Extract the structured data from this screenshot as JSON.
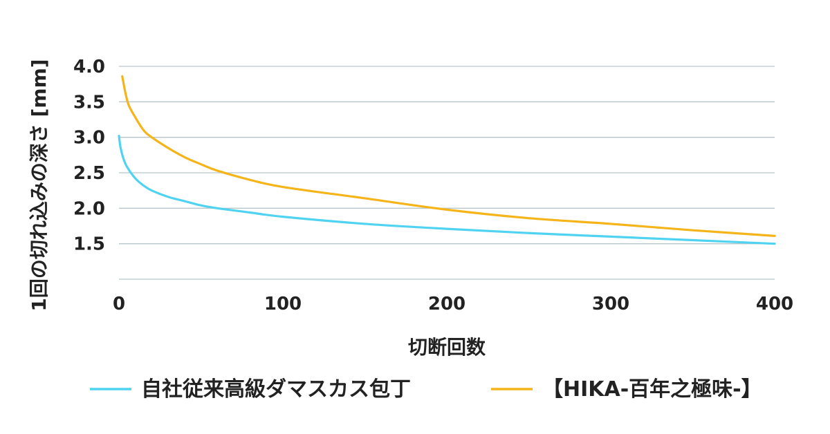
{
  "chart_data": {
    "type": "line",
    "xlabel": "切断回数",
    "ylabel": "1回の切れ込みの深さ [mm]",
    "xlim": [
      0,
      400
    ],
    "ylim": [
      1.0,
      4.0
    ],
    "xticks": [
      0,
      100,
      200,
      300,
      400
    ],
    "xtick_labels": [
      "0",
      "100",
      "200",
      "300",
      "400"
    ],
    "yticks": [
      1.5,
      2.0,
      2.5,
      3.0,
      3.5,
      4.0
    ],
    "ytick_labels": [
      "1.5",
      "2.0",
      "2.5",
      "3.0",
      "3.5",
      "4.0"
    ],
    "grid": true,
    "legend_position": "bottom",
    "series": [
      {
        "name": "自社従来高級ダマスカス包丁",
        "color": "#4fd3f0",
        "x": [
          0,
          1,
          3,
          5,
          10,
          15,
          20,
          30,
          40,
          50,
          60,
          80,
          100,
          150,
          200,
          250,
          300,
          350,
          400
        ],
        "y": [
          3.02,
          2.85,
          2.68,
          2.58,
          2.42,
          2.32,
          2.25,
          2.16,
          2.1,
          2.04,
          2.0,
          1.94,
          1.88,
          1.78,
          1.71,
          1.65,
          1.6,
          1.55,
          1.5
        ]
      },
      {
        "name": "【HIKA-百年之極味-】",
        "color": "#f4b41a",
        "x": [
          2,
          4,
          6,
          10,
          15,
          20,
          30,
          40,
          50,
          60,
          80,
          100,
          150,
          200,
          250,
          300,
          350,
          400
        ],
        "y": [
          3.86,
          3.62,
          3.45,
          3.28,
          3.1,
          3.0,
          2.85,
          2.72,
          2.62,
          2.53,
          2.4,
          2.3,
          2.14,
          1.98,
          1.86,
          1.78,
          1.69,
          1.61
        ]
      }
    ]
  }
}
